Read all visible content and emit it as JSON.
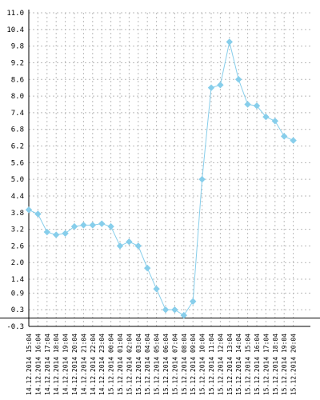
{
  "chart_data": {
    "type": "line",
    "title": "",
    "xlabel": "",
    "ylabel": "",
    "ylim": [
      -0.3,
      11.0
    ],
    "grid": true,
    "y_ticks": [
      "11.0",
      "10.4",
      "9.8",
      "9.2",
      "8.6",
      "8.0",
      "7.4",
      "6.8",
      "6.2",
      "5.6",
      "5.0",
      "4.4",
      "3.8",
      "3.2",
      "2.6",
      "2.0",
      "1.4",
      "0.9",
      "0.3",
      "-0.3"
    ],
    "categories": [
      "14.12.2014 15:04",
      "14.12.2014 16:04",
      "14.12.2014 17:04",
      "14.12.2014 18:04",
      "14.12.2014 19:04",
      "14.12.2014 20:04",
      "14.12.2014 21:04",
      "14.12.2014 22:04",
      "14.12.2014 23:04",
      "15.12.2014 00:04",
      "15.12.2014 01:04",
      "15.12.2014 02:04",
      "15.12.2014 03:04",
      "15.12.2014 04:04",
      "15.12.2014 05:04",
      "15.12.2014 06:04",
      "15.12.2014 07:04",
      "15.12.2014 08:04",
      "15.12.2014 09:04",
      "15.12.2014 10:04",
      "15.12.2014 11:04",
      "15.12.2014 12:04",
      "15.12.2014 13:04",
      "15.12.2014 14:04",
      "15.12.2014 15:04",
      "15.12.2014 16:04",
      "15.12.2014 17:04",
      "15.12.2014 18:04",
      "15.12.2014 19:04",
      "15.12.2014 20:04"
    ],
    "series": [
      {
        "values": [
          3.9,
          3.75,
          3.1,
          3.0,
          3.05,
          3.3,
          3.35,
          3.35,
          3.4,
          3.3,
          2.6,
          2.75,
          2.6,
          1.8,
          1.05,
          0.3,
          0.3,
          0.1,
          0.6,
          5.0,
          8.3,
          8.4,
          9.95,
          8.6,
          7.7,
          7.65,
          7.25,
          7.1,
          6.55,
          6.4
        ],
        "color": "#87ceeb"
      }
    ],
    "colors": {
      "line": "#87ceeb",
      "marker": "#87ceeb",
      "axis": "#000000",
      "grid": "#bbbbbb",
      "zero_line": "#000000"
    }
  }
}
